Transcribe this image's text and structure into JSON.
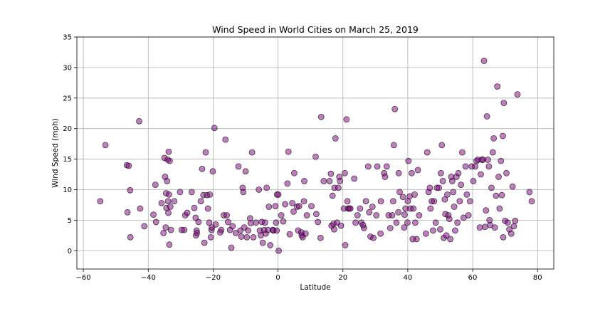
{
  "chart_data": {
    "type": "scatter",
    "title": "Wind Speed in World Cities on March 25, 2019",
    "xlabel": "Latitude",
    "ylabel": "Wind Speed (mph)",
    "xlim": [
      -62,
      85
    ],
    "ylim": [
      -3,
      35
    ],
    "xticks": [
      -60,
      -40,
      -20,
      0,
      20,
      40,
      60,
      80
    ],
    "yticks": [
      0,
      5,
      10,
      15,
      20,
      25,
      30,
      35
    ],
    "grid": true,
    "legend": "none",
    "colors": {
      "marker_fill": "#800080",
      "marker_edge": "#000000",
      "grid": "#b0b0b0"
    },
    "points": [
      [
        -54.8,
        8.1
      ],
      [
        -53.2,
        17.3
      ],
      [
        -46.6,
        14.0
      ],
      [
        -46.4,
        6.3
      ],
      [
        -45.6,
        9.9
      ],
      [
        -45.5,
        2.2
      ],
      [
        -42.8,
        21.2
      ],
      [
        -42.5,
        6.9
      ],
      [
        -41.2,
        4.0
      ],
      [
        -38.4,
        5.9
      ],
      [
        -37.8,
        10.8
      ],
      [
        -37.6,
        4.7
      ],
      [
        -35.3,
        2.9
      ],
      [
        -35.0,
        15.2
      ],
      [
        -34.8,
        12.1
      ],
      [
        -34.6,
        3.8
      ],
      [
        -34.5,
        9.4
      ],
      [
        -34.4,
        7.0
      ],
      [
        -34.2,
        11.4
      ],
      [
        -34.0,
        14.9
      ],
      [
        -33.9,
        8.1
      ],
      [
        -33.8,
        6.2
      ],
      [
        -33.7,
        16.2
      ],
      [
        -33.6,
        9.2
      ],
      [
        -33.5,
        1.0
      ],
      [
        -33.4,
        14.7
      ],
      [
        -33.2,
        7.2
      ],
      [
        -33.0,
        3.4
      ],
      [
        -32.0,
        8.1
      ],
      [
        -30.2,
        9.6
      ],
      [
        -28.9,
        3.4
      ],
      [
        -28.6,
        5.8
      ],
      [
        -28.0,
        6.2
      ],
      [
        -26.6,
        9.6
      ],
      [
        -25.8,
        7.0
      ],
      [
        -25.4,
        5.4
      ],
      [
        -25.3,
        2.5
      ],
      [
        -25.1,
        3.3
      ],
      [
        -25.0,
        2.9
      ],
      [
        -24.5,
        4.7
      ],
      [
        -23.8,
        8.1
      ],
      [
        -23.4,
        13.4
      ],
      [
        -23.0,
        9.1
      ],
      [
        -22.7,
        1.3
      ],
      [
        -22.3,
        16.1
      ],
      [
        -21.9,
        9.1
      ],
      [
        -21.6,
        6.9
      ],
      [
        -21.2,
        4.6
      ],
      [
        -21.0,
        9.2
      ],
      [
        -20.7,
        2.2
      ],
      [
        -20.5,
        3.4
      ],
      [
        -20.4,
        3.8
      ],
      [
        -20.1,
        13.0
      ],
      [
        -19.6,
        20.1
      ],
      [
        -19.2,
        4.3
      ],
      [
        -17.5,
        3.4
      ],
      [
        -16.7,
        5.8
      ],
      [
        -16.2,
        18.2
      ],
      [
        -15.8,
        5.8
      ],
      [
        -15.4,
        4.7
      ],
      [
        -14.8,
        3.4
      ],
      [
        -14.4,
        0.5
      ],
      [
        -14.0,
        4.0
      ],
      [
        -13.0,
        2.9
      ],
      [
        -12.2,
        13.8
      ],
      [
        -11.6,
        3.3
      ],
      [
        -11.3,
        2.3
      ],
      [
        -10.9,
        10.3
      ],
      [
        -10.7,
        9.6
      ],
      [
        -10.4,
        3.8
      ],
      [
        -10.0,
        13.0
      ],
      [
        -9.6,
        2.2
      ],
      [
        -9.2,
        3.3
      ],
      [
        -8.6,
        5.3
      ],
      [
        -8.4,
        4.5
      ],
      [
        -8.0,
        16.1
      ],
      [
        -7.6,
        2.2
      ],
      [
        -6.8,
        4.6
      ],
      [
        -5.9,
        10.0
      ],
      [
        -5.6,
        3.3
      ],
      [
        -5.3,
        2.5
      ],
      [
        -5.0,
        4.7
      ],
      [
        -4.7,
        1.3
      ],
      [
        -4.3,
        3.4
      ],
      [
        -4.0,
        4.6
      ],
      [
        -3.8,
        2.8
      ],
      [
        -3.5,
        10.3
      ],
      [
        -3.1,
        3.4
      ],
      [
        -2.8,
        7.2
      ],
      [
        -2.4,
        0.9
      ],
      [
        -1.6,
        3.4
      ],
      [
        -1.4,
        3.3
      ],
      [
        -0.8,
        7.3
      ],
      [
        -0.6,
        4.6
      ],
      [
        -0.4,
        3.3
      ],
      [
        -0.3,
        9.2
      ],
      [
        0.1,
        9.2
      ],
      [
        0.2,
        0.0
      ],
      [
        1.0,
        5.8
      ],
      [
        1.6,
        4.8
      ],
      [
        2.9,
        11.0
      ],
      [
        3.2,
        16.2
      ],
      [
        3.6,
        2.7
      ],
      [
        4.4,
        7.8
      ],
      [
        4.8,
        6.4
      ],
      [
        5.0,
        12.7
      ],
      [
        5.9,
        7.2
      ],
      [
        6.2,
        3.3
      ],
      [
        6.5,
        7.3
      ],
      [
        7.2,
        3.0
      ],
      [
        7.3,
        2.5
      ],
      [
        7.6,
        2.2
      ],
      [
        8.0,
        8.1
      ],
      [
        8.1,
        11.4
      ],
      [
        8.5,
        2.8
      ],
      [
        8.9,
        5.8
      ],
      [
        10.3,
        7.3
      ],
      [
        11.6,
        15.4
      ],
      [
        11.8,
        6.0
      ],
      [
        12.3,
        4.7
      ],
      [
        13.1,
        2.1
      ],
      [
        13.3,
        21.9
      ],
      [
        14.1,
        11.4
      ],
      [
        15.9,
        11.4
      ],
      [
        16.3,
        12.6
      ],
      [
        16.5,
        4.1
      ],
      [
        16.8,
        9.0
      ],
      [
        17.1,
        4.4
      ],
      [
        17.3,
        3.5
      ],
      [
        17.4,
        10.3
      ],
      [
        17.7,
        18.4
      ],
      [
        18.2,
        4.6
      ],
      [
        18.6,
        10.3
      ],
      [
        18.9,
        12.1
      ],
      [
        19.1,
        11.4
      ],
      [
        19.4,
        4.1
      ],
      [
        20.3,
        6.9
      ],
      [
        20.6,
        12.7
      ],
      [
        20.7,
        0.9
      ],
      [
        21.1,
        21.5
      ],
      [
        21.4,
        8.1
      ],
      [
        21.6,
        6.9
      ],
      [
        22.0,
        6.9
      ],
      [
        22.3,
        6.9
      ],
      [
        23.5,
        11.8
      ],
      [
        23.9,
        4.6
      ],
      [
        24.5,
        5.8
      ],
      [
        25.3,
        6.9
      ],
      [
        25.7,
        4.6
      ],
      [
        26.5,
        3.7
      ],
      [
        27.1,
        8.1
      ],
      [
        27.8,
        13.8
      ],
      [
        28.1,
        6.3
      ],
      [
        28.5,
        2.3
      ],
      [
        29.1,
        7.2
      ],
      [
        29.4,
        2.1
      ],
      [
        30.3,
        5.8
      ],
      [
        30.6,
        13.8
      ],
      [
        31.6,
        2.8
      ],
      [
        31.7,
        8.1
      ],
      [
        32.7,
        12.7
      ],
      [
        33.0,
        12.1
      ],
      [
        33.5,
        13.8
      ],
      [
        34.1,
        5.8
      ],
      [
        34.6,
        3.7
      ],
      [
        35.2,
        5.8
      ],
      [
        35.5,
        8.1
      ],
      [
        35.7,
        17.3
      ],
      [
        36.0,
        23.2
      ],
      [
        36.5,
        4.6
      ],
      [
        37.1,
        6.3
      ],
      [
        37.2,
        12.7
      ],
      [
        37.5,
        9.6
      ],
      [
        38.5,
        8.8
      ],
      [
        38.9,
        3.8
      ],
      [
        39.0,
        5.9
      ],
      [
        39.3,
        6.9
      ],
      [
        39.9,
        4.6
      ],
      [
        40.0,
        8.1
      ],
      [
        40.2,
        14.7
      ],
      [
        40.6,
        8.9
      ],
      [
        40.8,
        6.9
      ],
      [
        41.2,
        12.7
      ],
      [
        41.5,
        1.9
      ],
      [
        41.7,
        6.9
      ],
      [
        42.1,
        9.2
      ],
      [
        42.3,
        4.6
      ],
      [
        42.7,
        1.9
      ],
      [
        43.1,
        13.2
      ],
      [
        43.5,
        5.8
      ],
      [
        45.6,
        2.8
      ],
      [
        46.0,
        16.1
      ],
      [
        46.4,
        9.6
      ],
      [
        46.8,
        10.3
      ],
      [
        47.0,
        6.9
      ],
      [
        47.4,
        8.1
      ],
      [
        47.8,
        3.3
      ],
      [
        48.1,
        8.1
      ],
      [
        48.6,
        4.6
      ],
      [
        49.0,
        10.3
      ],
      [
        49.6,
        10.3
      ],
      [
        50.0,
        3.5
      ],
      [
        50.2,
        12.7
      ],
      [
        50.5,
        17.3
      ],
      [
        50.8,
        11.4
      ],
      [
        51.1,
        2.1
      ],
      [
        51.4,
        8.4
      ],
      [
        51.6,
        6.0
      ],
      [
        51.9,
        2.5
      ],
      [
        52.2,
        9.2
      ],
      [
        52.5,
        5.8
      ],
      [
        52.8,
        5.2
      ],
      [
        53.1,
        1.9
      ],
      [
        53.4,
        12.1
      ],
      [
        53.7,
        11.4
      ],
      [
        54.0,
        9.6
      ],
      [
        54.3,
        7.2
      ],
      [
        54.6,
        3.3
      ],
      [
        55.0,
        12.1
      ],
      [
        55.3,
        4.6
      ],
      [
        55.6,
        12.7
      ],
      [
        56.0,
        8.1
      ],
      [
        56.4,
        10.8
      ],
      [
        56.8,
        16.1
      ],
      [
        57.2,
        5.4
      ],
      [
        57.8,
        13.8
      ],
      [
        58.2,
        9.2
      ],
      [
        58.7,
        5.8
      ],
      [
        59.2,
        8.1
      ],
      [
        59.7,
        13.8
      ],
      [
        60.2,
        11.4
      ],
      [
        60.8,
        13.8
      ],
      [
        61.2,
        14.7
      ],
      [
        61.6,
        14.9
      ],
      [
        62.2,
        3.8
      ],
      [
        62.5,
        12.5
      ],
      [
        62.8,
        14.9
      ],
      [
        63.2,
        14.9
      ],
      [
        63.5,
        31.1
      ],
      [
        63.8,
        3.9
      ],
      [
        64.1,
        6.6
      ],
      [
        64.4,
        22.0
      ],
      [
        64.7,
        14.9
      ],
      [
        65.0,
        13.8
      ],
      [
        65.4,
        4.2
      ],
      [
        65.8,
        10.3
      ],
      [
        66.2,
        16.1
      ],
      [
        66.5,
        18.4
      ],
      [
        66.8,
        3.8
      ],
      [
        67.2,
        9.0
      ],
      [
        67.6,
        26.9
      ],
      [
        68.0,
        12.1
      ],
      [
        68.3,
        6.9
      ],
      [
        68.7,
        14.7
      ],
      [
        69.0,
        9.1
      ],
      [
        69.3,
        18.8
      ],
      [
        69.6,
        24.2
      ],
      [
        70.0,
        4.9
      ],
      [
        70.4,
        12.7
      ],
      [
        70.8,
        4.6
      ],
      [
        71.3,
        3.5
      ],
      [
        71.9,
        2.8
      ],
      [
        72.3,
        10.5
      ],
      [
        72.7,
        4.0
      ],
      [
        73.1,
        4.9
      ],
      [
        73.8,
        25.6
      ],
      [
        77.5,
        9.6
      ],
      [
        78.2,
        8.1
      ],
      [
        69.4,
        2.2
      ],
      [
        65.2,
        5.0
      ],
      [
        -46.0,
        13.9
      ],
      [
        -35.9,
        7.8
      ],
      [
        -29.7,
        3.4
      ],
      [
        -17.8,
        3.0
      ],
      [
        2.2,
        7.6
      ],
      [
        26.2,
        4.2
      ]
    ]
  }
}
